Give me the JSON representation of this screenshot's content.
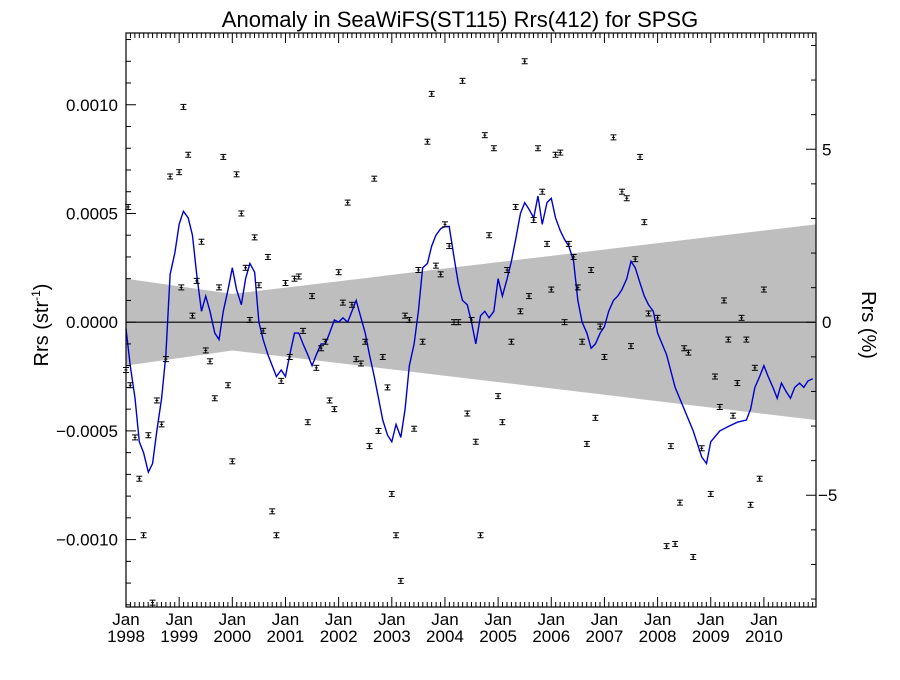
{
  "chart_data": {
    "type": "scatter",
    "title": "Anomaly in SeaWiFS(ST115) Rrs(412) for SPSG",
    "ylabel_left": "Rrs (str",
    "ylabel_left_sup": "-1",
    "ylabel_left_end": ")",
    "ylabel_right": "Rrs (%)",
    "xlim": [
      1998.0,
      2010.98
    ],
    "ylim": [
      -0.00131,
      0.00133
    ],
    "ylim_right": [
      -8.23,
      8.36
    ],
    "x_ticks": [
      {
        "month": "Jan",
        "year": "1998",
        "value": 1998
      },
      {
        "month": "Jan",
        "year": "1999",
        "value": 1999
      },
      {
        "month": "Jan",
        "year": "2000",
        "value": 2000
      },
      {
        "month": "Jan",
        "year": "2001",
        "value": 2001
      },
      {
        "month": "Jan",
        "year": "2002",
        "value": 2002
      },
      {
        "month": "Jan",
        "year": "2003",
        "value": 2003
      },
      {
        "month": "Jan",
        "year": "2004",
        "value": 2004
      },
      {
        "month": "Jan",
        "year": "2005",
        "value": 2005
      },
      {
        "month": "Jan",
        "year": "2006",
        "value": 2006
      },
      {
        "month": "Jan",
        "year": "2007",
        "value": 2007
      },
      {
        "month": "Jan",
        "year": "2008",
        "value": 2008
      },
      {
        "month": "Jan",
        "year": "2009",
        "value": 2009
      },
      {
        "month": "Jan",
        "year": "2010",
        "value": 2010
      }
    ],
    "y_ticks_left": [
      {
        "label": "0.0010",
        "value": 0.001
      },
      {
        "label": "0.0005",
        "value": 0.0005
      },
      {
        "label": "0.0000",
        "value": 0.0
      },
      {
        "label": "−0.0005",
        "value": -0.0005
      },
      {
        "label": "−0.0010",
        "value": -0.001
      }
    ],
    "y_ticks_right": [
      {
        "label": "5",
        "value": 5
      },
      {
        "label": "0",
        "value": 0
      },
      {
        "label": "−5",
        "value": -5
      }
    ],
    "band": {
      "color": "#bebebe",
      "upper": [
        [
          1998.0,
          0.0002
        ],
        [
          2000.0,
          0.00013
        ],
        [
          2010.98,
          0.00045
        ]
      ],
      "lower": [
        [
          1998.0,
          -0.0002
        ],
        [
          2000.0,
          -0.00013
        ],
        [
          2010.98,
          -0.00045
        ]
      ]
    },
    "smoothed_series": {
      "color": "#0000cc",
      "points": [
        [
          1998.0,
          -3e-05
        ],
        [
          1998.08,
          -0.0002
        ],
        [
          1998.17,
          -0.00035
        ],
        [
          1998.25,
          -0.00055
        ],
        [
          1998.33,
          -0.0006
        ],
        [
          1998.42,
          -0.00069
        ],
        [
          1998.5,
          -0.00065
        ],
        [
          1998.58,
          -0.0005
        ],
        [
          1998.67,
          -0.00035
        ],
        [
          1998.75,
          -0.00015
        ],
        [
          1998.83,
          0.00022
        ],
        [
          1998.92,
          0.00032
        ],
        [
          1999.0,
          0.00045
        ],
        [
          1999.08,
          0.00051
        ],
        [
          1999.17,
          0.00048
        ],
        [
          1999.25,
          0.0004
        ],
        [
          1999.33,
          0.00022
        ],
        [
          1999.42,
          5e-05
        ],
        [
          1999.5,
          0.00012
        ],
        [
          1999.58,
          5e-05
        ],
        [
          1999.67,
          -5e-05
        ],
        [
          1999.75,
          -8e-05
        ],
        [
          1999.83,
          5e-05
        ],
        [
          1999.92,
          0.00015
        ],
        [
          2000.0,
          0.00025
        ],
        [
          2000.08,
          0.00015
        ],
        [
          2000.17,
          8e-05
        ],
        [
          2000.25,
          0.0002
        ],
        [
          2000.33,
          0.00027
        ],
        [
          2000.42,
          0.00023
        ],
        [
          2000.5,
          0.0
        ],
        [
          2000.58,
          -8e-05
        ],
        [
          2000.67,
          -0.00015
        ],
        [
          2000.75,
          -0.0002
        ],
        [
          2000.83,
          -0.00025
        ],
        [
          2000.92,
          -0.00022
        ],
        [
          2001.0,
          -0.00025
        ],
        [
          2001.08,
          -0.00015
        ],
        [
          2001.17,
          -5e-05
        ],
        [
          2001.25,
          -5e-05
        ],
        [
          2001.33,
          -0.0001
        ],
        [
          2001.42,
          -0.00015
        ],
        [
          2001.5,
          -0.0002
        ],
        [
          2001.58,
          -0.00015
        ],
        [
          2001.67,
          -0.0001
        ],
        [
          2001.75,
          -0.0001
        ],
        [
          2001.83,
          -5e-05
        ],
        [
          2001.92,
          1e-05
        ],
        [
          2002.0,
          0.0
        ],
        [
          2002.08,
          2e-05
        ],
        [
          2002.17,
          0.0
        ],
        [
          2002.25,
          5e-05
        ],
        [
          2002.33,
          0.0001
        ],
        [
          2002.42,
          2e-05
        ],
        [
          2002.5,
          -5e-05
        ],
        [
          2002.58,
          -0.00015
        ],
        [
          2002.67,
          -0.00025
        ],
        [
          2002.75,
          -0.00035
        ],
        [
          2002.83,
          -0.00045
        ],
        [
          2002.92,
          -0.00052
        ],
        [
          2003.0,
          -0.00055
        ],
        [
          2003.08,
          -0.00047
        ],
        [
          2003.17,
          -0.00053
        ],
        [
          2003.25,
          -0.0004
        ],
        [
          2003.33,
          -0.0002
        ],
        [
          2003.42,
          -0.0001
        ],
        [
          2003.5,
          5e-05
        ],
        [
          2003.58,
          0.00025
        ],
        [
          2003.67,
          0.00027
        ],
        [
          2003.75,
          0.00035
        ],
        [
          2003.83,
          0.0004
        ],
        [
          2003.92,
          0.00043
        ],
        [
          2004.0,
          0.00044
        ],
        [
          2004.08,
          0.00044
        ],
        [
          2004.17,
          0.0003
        ],
        [
          2004.25,
          0.00018
        ],
        [
          2004.33,
          0.0001
        ],
        [
          2004.42,
          8e-05
        ],
        [
          2004.5,
          0.0
        ],
        [
          2004.58,
          -0.0001
        ],
        [
          2004.67,
          3e-05
        ],
        [
          2004.75,
          5e-05
        ],
        [
          2004.83,
          2e-05
        ],
        [
          2004.92,
          5e-05
        ],
        [
          2005.0,
          0.0002
        ],
        [
          2005.08,
          0.00012
        ],
        [
          2005.17,
          0.0002
        ],
        [
          2005.25,
          0.00028
        ],
        [
          2005.33,
          0.00038
        ],
        [
          2005.42,
          0.0005
        ],
        [
          2005.5,
          0.00055
        ],
        [
          2005.58,
          0.00052
        ],
        [
          2005.67,
          0.00048
        ],
        [
          2005.75,
          0.00058
        ],
        [
          2005.83,
          0.00045
        ],
        [
          2005.92,
          0.00055
        ],
        [
          2006.0,
          0.00057
        ],
        [
          2006.08,
          0.00048
        ],
        [
          2006.17,
          0.00042
        ],
        [
          2006.25,
          0.00038
        ],
        [
          2006.33,
          0.00035
        ],
        [
          2006.42,
          0.00028
        ],
        [
          2006.5,
          0.0001
        ],
        [
          2006.58,
          0.0
        ],
        [
          2006.67,
          -5e-05
        ],
        [
          2006.75,
          -0.00012
        ],
        [
          2006.83,
          -0.0001
        ],
        [
          2006.92,
          -5e-05
        ],
        [
          2007.0,
          -2e-05
        ],
        [
          2007.08,
          5e-05
        ],
        [
          2007.17,
          0.0001
        ],
        [
          2007.25,
          0.00012
        ],
        [
          2007.33,
          0.00015
        ],
        [
          2007.42,
          0.0002
        ],
        [
          2007.5,
          0.00028
        ],
        [
          2007.58,
          0.00025
        ],
        [
          2007.67,
          0.00018
        ],
        [
          2007.75,
          0.00012
        ],
        [
          2007.83,
          8e-05
        ],
        [
          2007.92,
          5e-05
        ],
        [
          2008.0,
          -5e-05
        ],
        [
          2008.17,
          -0.00015
        ],
        [
          2008.33,
          -0.0003
        ],
        [
          2008.5,
          -0.0004
        ],
        [
          2008.67,
          -0.0005
        ],
        [
          2008.75,
          -0.00056
        ],
        [
          2008.83,
          -0.00062
        ],
        [
          2008.92,
          -0.00065
        ],
        [
          2009.0,
          -0.00055
        ],
        [
          2009.17,
          -0.0005
        ],
        [
          2009.33,
          -0.00048
        ],
        [
          2009.5,
          -0.00046
        ],
        [
          2009.67,
          -0.00045
        ],
        [
          2009.75,
          -0.0004
        ],
        [
          2009.83,
          -0.0003
        ],
        [
          2009.92,
          -0.00025
        ],
        [
          2010.0,
          -0.0002
        ],
        [
          2010.08,
          -0.00025
        ],
        [
          2010.17,
          -0.0003
        ],
        [
          2010.25,
          -0.00035
        ],
        [
          2010.33,
          -0.00028
        ],
        [
          2010.42,
          -0.00032
        ],
        [
          2010.5,
          -0.00035
        ],
        [
          2010.58,
          -0.0003
        ],
        [
          2010.67,
          -0.00028
        ],
        [
          2010.75,
          -0.0003
        ],
        [
          2010.83,
          -0.00027
        ],
        [
          2010.92,
          -0.00026
        ]
      ]
    },
    "points": [
      [
        1998.0,
        -0.00022
      ],
      [
        1998.04,
        0.00053
      ],
      [
        1998.08,
        -0.00029
      ],
      [
        1998.17,
        -0.00053
      ],
      [
        1998.25,
        -0.00072
      ],
      [
        1998.33,
        -0.00098
      ],
      [
        1998.42,
        -0.00052
      ],
      [
        1998.5,
        -0.00129
      ],
      [
        1998.58,
        -0.00036
      ],
      [
        1998.67,
        -0.00047
      ],
      [
        1998.75,
        -0.00017
      ],
      [
        1998.83,
        0.00067
      ],
      [
        1999.0,
        0.00069
      ],
      [
        1999.04,
        0.00016
      ],
      [
        1999.08,
        0.00099
      ],
      [
        1999.17,
        0.00077
      ],
      [
        1999.25,
        3e-05
      ],
      [
        1999.33,
        0.00019
      ],
      [
        1999.42,
        0.00037
      ],
      [
        1999.5,
        -0.00013
      ],
      [
        1999.58,
        -0.00018
      ],
      [
        1999.67,
        -0.00035
      ],
      [
        1999.75,
        0.00016
      ],
      [
        1999.83,
        0.00076
      ],
      [
        1999.92,
        -0.00029
      ],
      [
        2000.0,
        -0.00064
      ],
      [
        2000.08,
        0.00068
      ],
      [
        2000.17,
        0.0005
      ],
      [
        2000.25,
        0.00025
      ],
      [
        2000.33,
        1e-05
      ],
      [
        2000.42,
        0.00039
      ],
      [
        2000.5,
        0.00017
      ],
      [
        2000.58,
        -4e-05
      ],
      [
        2000.67,
        0.0003
      ],
      [
        2000.75,
        -0.00087
      ],
      [
        2000.83,
        -0.00098
      ],
      [
        2000.92,
        -0.00027
      ],
      [
        2001.0,
        0.00018
      ],
      [
        2001.08,
        -0.00016
      ],
      [
        2001.17,
        0.0002
      ],
      [
        2001.25,
        0.00021
      ],
      [
        2001.33,
        -4e-05
      ],
      [
        2001.42,
        -0.00046
      ],
      [
        2001.5,
        0.00012
      ],
      [
        2001.58,
        -0.00021
      ],
      [
        2001.67,
        -0.00012
      ],
      [
        2001.75,
        -9e-05
      ],
      [
        2001.83,
        -0.00036
      ],
      [
        2001.92,
        -0.0004
      ],
      [
        2002.0,
        0.00023
      ],
      [
        2002.08,
        9e-05
      ],
      [
        2002.17,
        0.00055
      ],
      [
        2002.25,
        8e-05
      ],
      [
        2002.33,
        -0.00017
      ],
      [
        2002.42,
        -0.00019
      ],
      [
        2002.5,
        -9e-05
      ],
      [
        2002.58,
        -0.00057
      ],
      [
        2002.67,
        0.00066
      ],
      [
        2002.75,
        -0.0005
      ],
      [
        2002.83,
        -0.00016
      ],
      [
        2002.92,
        -0.0003
      ],
      [
        2003.0,
        -0.00079
      ],
      [
        2003.08,
        -0.00098
      ],
      [
        2003.17,
        -0.00119
      ],
      [
        2003.25,
        3e-05
      ],
      [
        2003.33,
        1e-05
      ],
      [
        2003.42,
        -0.00049
      ],
      [
        2003.5,
        0.00024
      ],
      [
        2003.58,
        -9e-05
      ],
      [
        2003.67,
        0.00083
      ],
      [
        2003.75,
        0.00105
      ],
      [
        2003.83,
        0.00026
      ],
      [
        2003.92,
        0.00022
      ],
      [
        2004.0,
        0.00045
      ],
      [
        2004.08,
        0.00035
      ],
      [
        2004.17,
        0.0
      ],
      [
        2004.25,
        0.0
      ],
      [
        2004.33,
        0.00111
      ],
      [
        2004.42,
        -0.00042
      ],
      [
        2004.5,
        1e-05
      ],
      [
        2004.58,
        -0.00055
      ],
      [
        2004.67,
        -0.00098
      ],
      [
        2004.75,
        0.00086
      ],
      [
        2004.83,
        0.0004
      ],
      [
        2004.92,
        0.0008
      ],
      [
        2005.0,
        -0.00034
      ],
      [
        2005.08,
        -0.00046
      ],
      [
        2005.17,
        0.00024
      ],
      [
        2005.25,
        -9e-05
      ],
      [
        2005.33,
        0.00053
      ],
      [
        2005.42,
        5e-05
      ],
      [
        2005.5,
        0.0012
      ],
      [
        2005.58,
        0.00012
      ],
      [
        2005.67,
        0.00047
      ],
      [
        2005.75,
        0.0008
      ],
      [
        2005.83,
        0.0006
      ],
      [
        2005.92,
        0.00036
      ],
      [
        2006.0,
        0.00015
      ],
      [
        2006.08,
        0.00077
      ],
      [
        2006.17,
        0.00078
      ],
      [
        2006.25,
        0.0
      ],
      [
        2006.33,
        0.00036
      ],
      [
        2006.42,
        0.0003
      ],
      [
        2006.5,
        0.00016
      ],
      [
        2006.58,
        -9e-05
      ],
      [
        2006.67,
        -0.00056
      ],
      [
        2006.75,
        0.00024
      ],
      [
        2006.83,
        -0.00044
      ],
      [
        2006.92,
        -2e-05
      ],
      [
        2007.0,
        -0.00016
      ],
      [
        2007.17,
        0.00085
      ],
      [
        2007.33,
        0.0006
      ],
      [
        2007.42,
        0.00057
      ],
      [
        2007.5,
        -0.00011
      ],
      [
        2007.58,
        0.00029
      ],
      [
        2007.67,
        0.00076
      ],
      [
        2007.75,
        0.00046
      ],
      [
        2007.83,
        4e-05
      ],
      [
        2008.0,
        2e-05
      ],
      [
        2008.17,
        -0.00103
      ],
      [
        2008.25,
        -0.00057
      ],
      [
        2008.33,
        -0.00102
      ],
      [
        2008.42,
        -0.00083
      ],
      [
        2008.5,
        -0.00012
      ],
      [
        2008.58,
        -0.00014
      ],
      [
        2008.67,
        -0.00108
      ],
      [
        2008.83,
        -0.00058
      ],
      [
        2009.0,
        -0.00079
      ],
      [
        2009.08,
        -0.00025
      ],
      [
        2009.17,
        -0.00039
      ],
      [
        2009.25,
        0.0001
      ],
      [
        2009.33,
        -8e-05
      ],
      [
        2009.42,
        -0.00043
      ],
      [
        2009.5,
        -0.00028
      ],
      [
        2009.58,
        2e-05
      ],
      [
        2009.67,
        -8e-05
      ],
      [
        2009.75,
        -0.00084
      ],
      [
        2009.83,
        -0.00021
      ],
      [
        2009.92,
        -0.00072
      ],
      [
        2010.0,
        0.00015
      ]
    ]
  }
}
